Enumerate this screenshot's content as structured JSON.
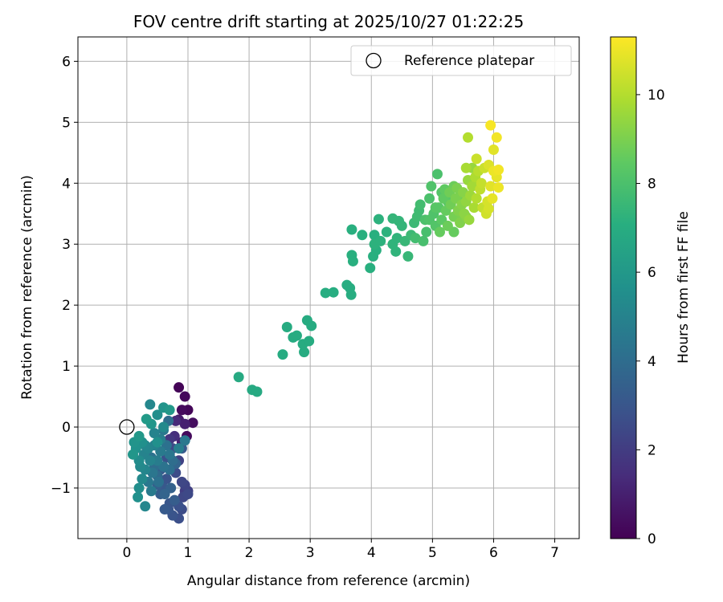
{
  "chart_data": {
    "type": "scatter",
    "title": "FOV centre drift starting at 2025/10/27 01:22:25",
    "xlabel": "Angular distance from reference (arcmin)",
    "ylabel": "Rotation from reference (arcmin)",
    "xlim": [
      -0.8,
      7.4
    ],
    "ylim": [
      -1.83,
      6.4
    ],
    "xticks": [
      0,
      1,
      2,
      3,
      4,
      5,
      6,
      7
    ],
    "yticks": [
      -1,
      0,
      1,
      2,
      3,
      4,
      5,
      6
    ],
    "xtick_labels": [
      "0",
      "1",
      "2",
      "3",
      "4",
      "5",
      "6",
      "7"
    ],
    "ytick_labels": [
      "−1",
      "0",
      "1",
      "2",
      "3",
      "4",
      "5",
      "6"
    ],
    "grid": true,
    "legend": {
      "position": "top-right",
      "entries": [
        "Reference platepar"
      ]
    },
    "reference_point": {
      "x": 0,
      "y": 0,
      "label": "Reference platepar"
    },
    "colorbar": {
      "label": "Hours from first FF file",
      "range": [
        0,
        11.3
      ],
      "ticks": [
        0,
        2,
        4,
        6,
        8,
        10
      ],
      "tick_labels": [
        "0",
        "2",
        "4",
        "6",
        "8",
        "10"
      ],
      "colormap": "viridis"
    },
    "points": [
      [
        0.85,
        0.65,
        0.1
      ],
      [
        0.95,
        0.5,
        0.2
      ],
      [
        0.9,
        0.28,
        0.3
      ],
      [
        1.0,
        0.28,
        0.15
      ],
      [
        1.08,
        0.07,
        0.4
      ],
      [
        0.98,
        -0.15,
        0.3
      ],
      [
        0.85,
        0.12,
        0.8
      ],
      [
        0.95,
        0.05,
        1.0
      ],
      [
        0.8,
        0.1,
        1.3
      ],
      [
        0.78,
        -0.15,
        1.5
      ],
      [
        0.9,
        -0.25,
        1.0
      ],
      [
        0.7,
        -0.2,
        1.8
      ],
      [
        0.75,
        -0.35,
        2.5
      ],
      [
        0.65,
        -0.5,
        2.8
      ],
      [
        0.85,
        -0.55,
        2.2
      ],
      [
        0.8,
        -0.75,
        2.6
      ],
      [
        0.9,
        -0.9,
        2.4
      ],
      [
        0.95,
        -1.05,
        2.0
      ],
      [
        1.0,
        -1.1,
        2.5
      ],
      [
        0.85,
        -1.3,
        2.8
      ],
      [
        0.9,
        -1.35,
        2.6
      ],
      [
        0.7,
        -1.25,
        3.0
      ],
      [
        0.62,
        -1.35,
        3.2
      ],
      [
        0.75,
        -1.45,
        2.9
      ],
      [
        0.85,
        -1.5,
        2.7
      ],
      [
        0.55,
        -1.1,
        3.3
      ],
      [
        0.6,
        -1.0,
        3.1
      ],
      [
        0.5,
        -0.95,
        3.4
      ],
      [
        0.65,
        -0.85,
        2.9
      ],
      [
        0.55,
        -0.7,
        3.2
      ],
      [
        0.4,
        -0.5,
        4.2
      ],
      [
        0.45,
        -0.65,
        4.0
      ],
      [
        0.5,
        -0.8,
        3.9
      ],
      [
        0.35,
        -0.9,
        4.5
      ],
      [
        0.4,
        -1.05,
        4.6
      ],
      [
        0.3,
        -1.3,
        5.2
      ],
      [
        0.2,
        -1.0,
        5.5
      ],
      [
        0.18,
        -1.15,
        5.6
      ],
      [
        0.25,
        -0.85,
        5.3
      ],
      [
        0.3,
        -0.7,
        5.1
      ],
      [
        0.2,
        -0.55,
        5.4
      ],
      [
        0.28,
        -0.45,
        5.0
      ],
      [
        0.15,
        -0.35,
        5.7
      ],
      [
        0.12,
        -0.25,
        5.8
      ],
      [
        0.1,
        -0.45,
        5.9
      ],
      [
        0.2,
        -0.15,
        6.0
      ],
      [
        0.25,
        -0.25,
        5.6
      ],
      [
        0.3,
        -0.3,
        5.2
      ],
      [
        0.32,
        0.13,
        6.1
      ],
      [
        0.4,
        0.05,
        5.9
      ],
      [
        0.38,
        0.37,
        5.2
      ],
      [
        0.5,
        0.2,
        5.5
      ],
      [
        0.6,
        0.32,
        5.8
      ],
      [
        0.7,
        0.28,
        6.0
      ],
      [
        0.45,
        -0.1,
        5.0
      ],
      [
        0.55,
        -0.2,
        4.8
      ],
      [
        0.6,
        -0.05,
        4.5
      ],
      [
        0.65,
        -0.3,
        4.2
      ],
      [
        0.7,
        -0.45,
        4.4
      ],
      [
        0.75,
        -0.55,
        4.0
      ],
      [
        0.55,
        -0.4,
        4.6
      ],
      [
        0.45,
        -0.3,
        4.9
      ],
      [
        0.35,
        -0.35,
        5.1
      ],
      [
        0.5,
        -0.55,
        4.7
      ],
      [
        0.6,
        -0.65,
        4.3
      ],
      [
        0.7,
        -0.7,
        4.1
      ],
      [
        0.8,
        -0.6,
        3.6
      ],
      [
        0.9,
        -0.35,
        3.2
      ],
      [
        0.95,
        -0.22,
        4.5
      ],
      [
        0.85,
        -0.35,
        4.8
      ],
      [
        0.6,
        0.0,
        5.3
      ],
      [
        0.68,
        0.1,
        4.0
      ],
      [
        0.42,
        -0.75,
        4.4
      ],
      [
        0.52,
        -0.9,
        4.2
      ],
      [
        0.62,
        -1.1,
        3.6
      ],
      [
        0.72,
        -1.0,
        3.5
      ],
      [
        0.78,
        -1.2,
        3.3
      ],
      [
        0.68,
        -1.35,
        3.0
      ],
      [
        0.95,
        -0.95,
        2.3
      ],
      [
        1.0,
        -1.05,
        2.1
      ],
      [
        0.92,
        -1.15,
        2.4
      ],
      [
        0.5,
        -0.25,
        5.6
      ],
      [
        0.38,
        -0.55,
        5.0
      ],
      [
        0.22,
        -0.65,
        5.3
      ],
      [
        1.83,
        0.82,
        6.8
      ],
      [
        2.05,
        0.61,
        6.8
      ],
      [
        2.13,
        0.58,
        6.8
      ],
      [
        2.55,
        1.19,
        6.9
      ],
      [
        2.62,
        1.64,
        6.9
      ],
      [
        2.72,
        1.47,
        6.9
      ],
      [
        2.78,
        1.5,
        6.9
      ],
      [
        2.9,
        1.23,
        6.9
      ],
      [
        2.88,
        1.36,
        6.9
      ],
      [
        2.98,
        1.41,
        6.9
      ],
      [
        2.95,
        1.75,
        6.9
      ],
      [
        3.02,
        1.66,
        6.9
      ],
      [
        3.25,
        2.2,
        7.0
      ],
      [
        3.38,
        2.21,
        7.0
      ],
      [
        3.6,
        2.33,
        7.0
      ],
      [
        3.65,
        2.28,
        7.0
      ],
      [
        3.67,
        2.17,
        7.0
      ],
      [
        3.68,
        2.82,
        7.1
      ],
      [
        3.7,
        2.72,
        7.1
      ],
      [
        3.68,
        3.24,
        7.1
      ],
      [
        3.85,
        3.15,
        7.1
      ],
      [
        3.98,
        2.61,
        7.1
      ],
      [
        4.03,
        2.8,
        7.1
      ],
      [
        4.08,
        2.9,
        7.1
      ],
      [
        4.05,
        3.15,
        7.1
      ],
      [
        4.05,
        3.0,
        7.2
      ],
      [
        4.12,
        3.41,
        7.2
      ],
      [
        4.15,
        3.05,
        7.2
      ],
      [
        4.25,
        3.2,
        7.2
      ],
      [
        4.35,
        3.0,
        7.3
      ],
      [
        4.4,
        2.88,
        7.3
      ],
      [
        4.42,
        3.1,
        7.3
      ],
      [
        4.35,
        3.42,
        7.4
      ],
      [
        4.45,
        3.38,
        7.4
      ],
      [
        4.5,
        3.3,
        7.4
      ],
      [
        4.55,
        3.05,
        7.5
      ],
      [
        4.6,
        2.8,
        7.5
      ],
      [
        4.65,
        3.15,
        7.6
      ],
      [
        4.7,
        3.35,
        7.6
      ],
      [
        4.75,
        3.45,
        7.7
      ],
      [
        4.78,
        3.55,
        7.7
      ],
      [
        4.8,
        3.65,
        7.8
      ],
      [
        4.72,
        3.1,
        7.8
      ],
      [
        4.85,
        3.05,
        7.9
      ],
      [
        4.9,
        3.2,
        7.9
      ],
      [
        4.88,
        3.4,
        8.0
      ],
      [
        4.95,
        3.75,
        8.0
      ],
      [
        4.98,
        3.95,
        8.1
      ],
      [
        5.02,
        3.5,
        8.1
      ],
      [
        5.05,
        3.3,
        8.2
      ],
      [
        5.1,
        3.6,
        8.3
      ],
      [
        5.08,
        4.15,
        8.0
      ],
      [
        5.15,
        3.4,
        8.4
      ],
      [
        5.18,
        3.75,
        8.5
      ],
      [
        5.2,
        3.9,
        8.5
      ],
      [
        5.22,
        3.55,
        8.6
      ],
      [
        5.12,
        3.2,
        8.6
      ],
      [
        5.25,
        3.3,
        8.7
      ],
      [
        5.3,
        3.65,
        8.8
      ],
      [
        5.28,
        3.85,
        8.8
      ],
      [
        5.35,
        3.45,
        8.9
      ],
      [
        5.38,
        3.75,
        9.0
      ],
      [
        5.4,
        3.92,
        9.0
      ],
      [
        5.42,
        3.55,
        9.1
      ],
      [
        5.45,
        3.35,
        9.1
      ],
      [
        5.48,
        3.65,
        9.2
      ],
      [
        5.5,
        3.85,
        9.2
      ],
      [
        5.52,
        3.5,
        9.3
      ],
      [
        5.55,
        3.7,
        9.4
      ],
      [
        5.58,
        4.05,
        9.5
      ],
      [
        5.6,
        3.4,
        9.5
      ],
      [
        5.62,
        3.8,
        9.6
      ],
      [
        5.65,
        3.95,
        9.7
      ],
      [
        5.55,
        4.25,
        9.8
      ],
      [
        5.68,
        3.6,
        9.8
      ],
      [
        5.7,
        4.1,
        9.9
      ],
      [
        5.72,
        3.75,
        10.0
      ],
      [
        5.75,
        4.2,
        10.1
      ],
      [
        5.78,
        3.9,
        10.2
      ],
      [
        5.8,
        4.0,
        10.3
      ],
      [
        5.82,
        3.6,
        10.3
      ],
      [
        5.85,
        4.25,
        10.4
      ],
      [
        5.88,
        3.5,
        10.5
      ],
      [
        5.9,
        3.7,
        10.6
      ],
      [
        5.92,
        4.3,
        10.7
      ],
      [
        5.95,
        3.95,
        10.8
      ],
      [
        5.98,
        3.75,
        10.9
      ],
      [
        6.0,
        4.2,
        11.0
      ],
      [
        5.58,
        4.75,
        10.0
      ],
      [
        5.65,
        4.25,
        9.5
      ],
      [
        5.72,
        4.4,
        10.4
      ],
      [
        6.0,
        4.55,
        10.8
      ],
      [
        6.05,
        4.75,
        11.1
      ],
      [
        5.95,
        4.95,
        11.2
      ],
      [
        6.08,
        3.93,
        11.0
      ],
      [
        6.05,
        4.1,
        10.9
      ],
      [
        6.08,
        4.22,
        11.1
      ],
      [
        5.92,
        3.58,
        10.6
      ],
      [
        5.35,
        3.2,
        8.6
      ],
      [
        5.25,
        3.7,
        8.3
      ],
      [
        5.15,
        3.85,
        8.2
      ],
      [
        5.45,
        3.8,
        8.8
      ],
      [
        5.05,
        3.6,
        8.3
      ],
      [
        4.95,
        3.4,
        8.1
      ],
      [
        5.48,
        3.45,
        9.0
      ],
      [
        5.55,
        3.45,
        9.2
      ],
      [
        5.72,
        3.98,
        9.6
      ],
      [
        5.35,
        3.95,
        8.7
      ]
    ]
  }
}
